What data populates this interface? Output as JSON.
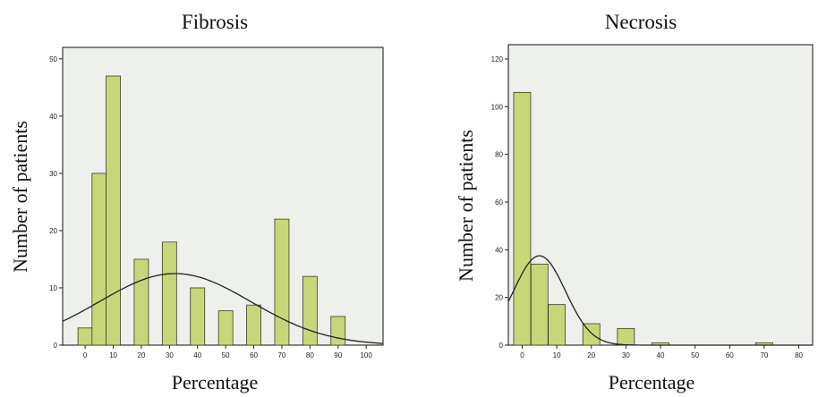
{
  "chart_data": [
    {
      "type": "bar",
      "title": "Fibrosis",
      "xlabel": "Percentage",
      "ylabel": "Number of patients",
      "xlim": [
        -8,
        106
      ],
      "ylim": [
        0,
        52
      ],
      "xticks": [
        "0",
        "10",
        "20",
        "30",
        "40",
        "50",
        "60",
        "70",
        "80",
        "90",
        "100"
      ],
      "yticks": [
        "0",
        "10",
        "20",
        "30",
        "40",
        "50"
      ],
      "bars": [
        {
          "x": 0,
          "value": 3
        },
        {
          "x": 5,
          "value": 30
        },
        {
          "x": 10,
          "value": 47
        },
        {
          "x": 20,
          "value": 15
        },
        {
          "x": 30,
          "value": 18
        },
        {
          "x": 40,
          "value": 10
        },
        {
          "x": 50,
          "value": 6
        },
        {
          "x": 60,
          "value": 7
        },
        {
          "x": 70,
          "value": 22
        },
        {
          "x": 80,
          "value": 12
        },
        {
          "x": 90,
          "value": 5
        }
      ],
      "curve": {
        "type": "normal",
        "mean": 32,
        "sd": 27,
        "peak": 12.5
      }
    },
    {
      "type": "bar",
      "title": "Necrosis",
      "xlabel": "Percentage",
      "ylabel": "Number of patients",
      "xlim": [
        -4,
        84
      ],
      "ylim": [
        0,
        126
      ],
      "xticks": [
        "0",
        "10",
        "20",
        "30",
        "40",
        "50",
        "60",
        "70",
        "80"
      ],
      "yticks": [
        "0",
        "20",
        "40",
        "60",
        "80",
        "100",
        "120"
      ],
      "bars": [
        {
          "x": 0,
          "value": 106
        },
        {
          "x": 5,
          "value": 34
        },
        {
          "x": 10,
          "value": 17
        },
        {
          "x": 20,
          "value": 9
        },
        {
          "x": 30,
          "value": 7
        },
        {
          "x": 40,
          "value": 1
        },
        {
          "x": 70,
          "value": 1
        }
      ],
      "curve": {
        "type": "normal",
        "mean": 5,
        "sd": 7.5,
        "peak": 37.5
      }
    }
  ]
}
